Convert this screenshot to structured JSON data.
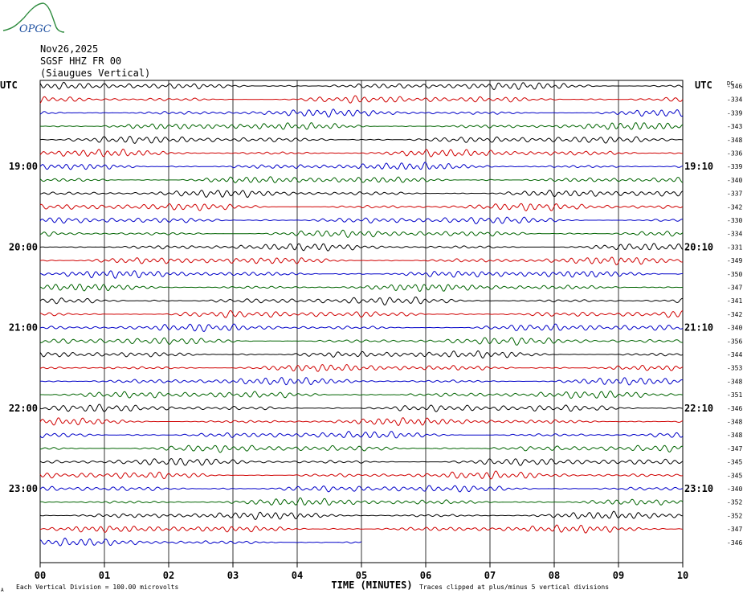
{
  "logo": {
    "text": "OPGC",
    "color": "#1e50a0",
    "curve_color": "#2e8b3e"
  },
  "header": {
    "date": "Nov26,2025",
    "station": "SGSF HHZ FR 00",
    "location": "(Siaugues Vertical)"
  },
  "chart_data": {
    "type": "line",
    "title": "SGSF HHZ FR 00",
    "xlabel": "TIME (MINUTES)",
    "ylabel": "",
    "xlim": [
      0,
      10
    ],
    "x_ticks": [
      "00",
      "01",
      "02",
      "03",
      "04",
      "05",
      "06",
      "07",
      "08",
      "09",
      "10"
    ],
    "left_axis_label": "UTC",
    "right_axis_label": "UTC",
    "right_axis_header": "DC",
    "left_hour_labels": [
      "19:00",
      "20:00",
      "21:00",
      "22:00",
      "23:00"
    ],
    "right_hour_labels": [
      "19:10",
      "20:10",
      "21:10",
      "22:10",
      "23:10"
    ],
    "hour_label_rows": [
      6,
      12,
      18,
      24,
      30
    ],
    "trace_colors": [
      "#000000",
      "#d00000",
      "#0000c8",
      "#006400"
    ],
    "traces_dc": [
      -346,
      -334,
      -339,
      -343,
      -348,
      -336,
      -339,
      -340,
      -337,
      -342,
      -330,
      -334,
      -331,
      -349,
      -350,
      -347,
      -341,
      -342,
      -340,
      -356,
      -344,
      -353,
      -348,
      -351,
      -346,
      -348,
      -348,
      -347,
      -345,
      -345,
      -340,
      -352,
      -352,
      -347,
      -346
    ],
    "last_trace_end_minute": 5.0,
    "footer_left": "Each Vertical Division =  100.00 microvolts",
    "footer_right": "Traces clipped at plus/minus 5 vertical divisions",
    "footer_mark": "A"
  }
}
